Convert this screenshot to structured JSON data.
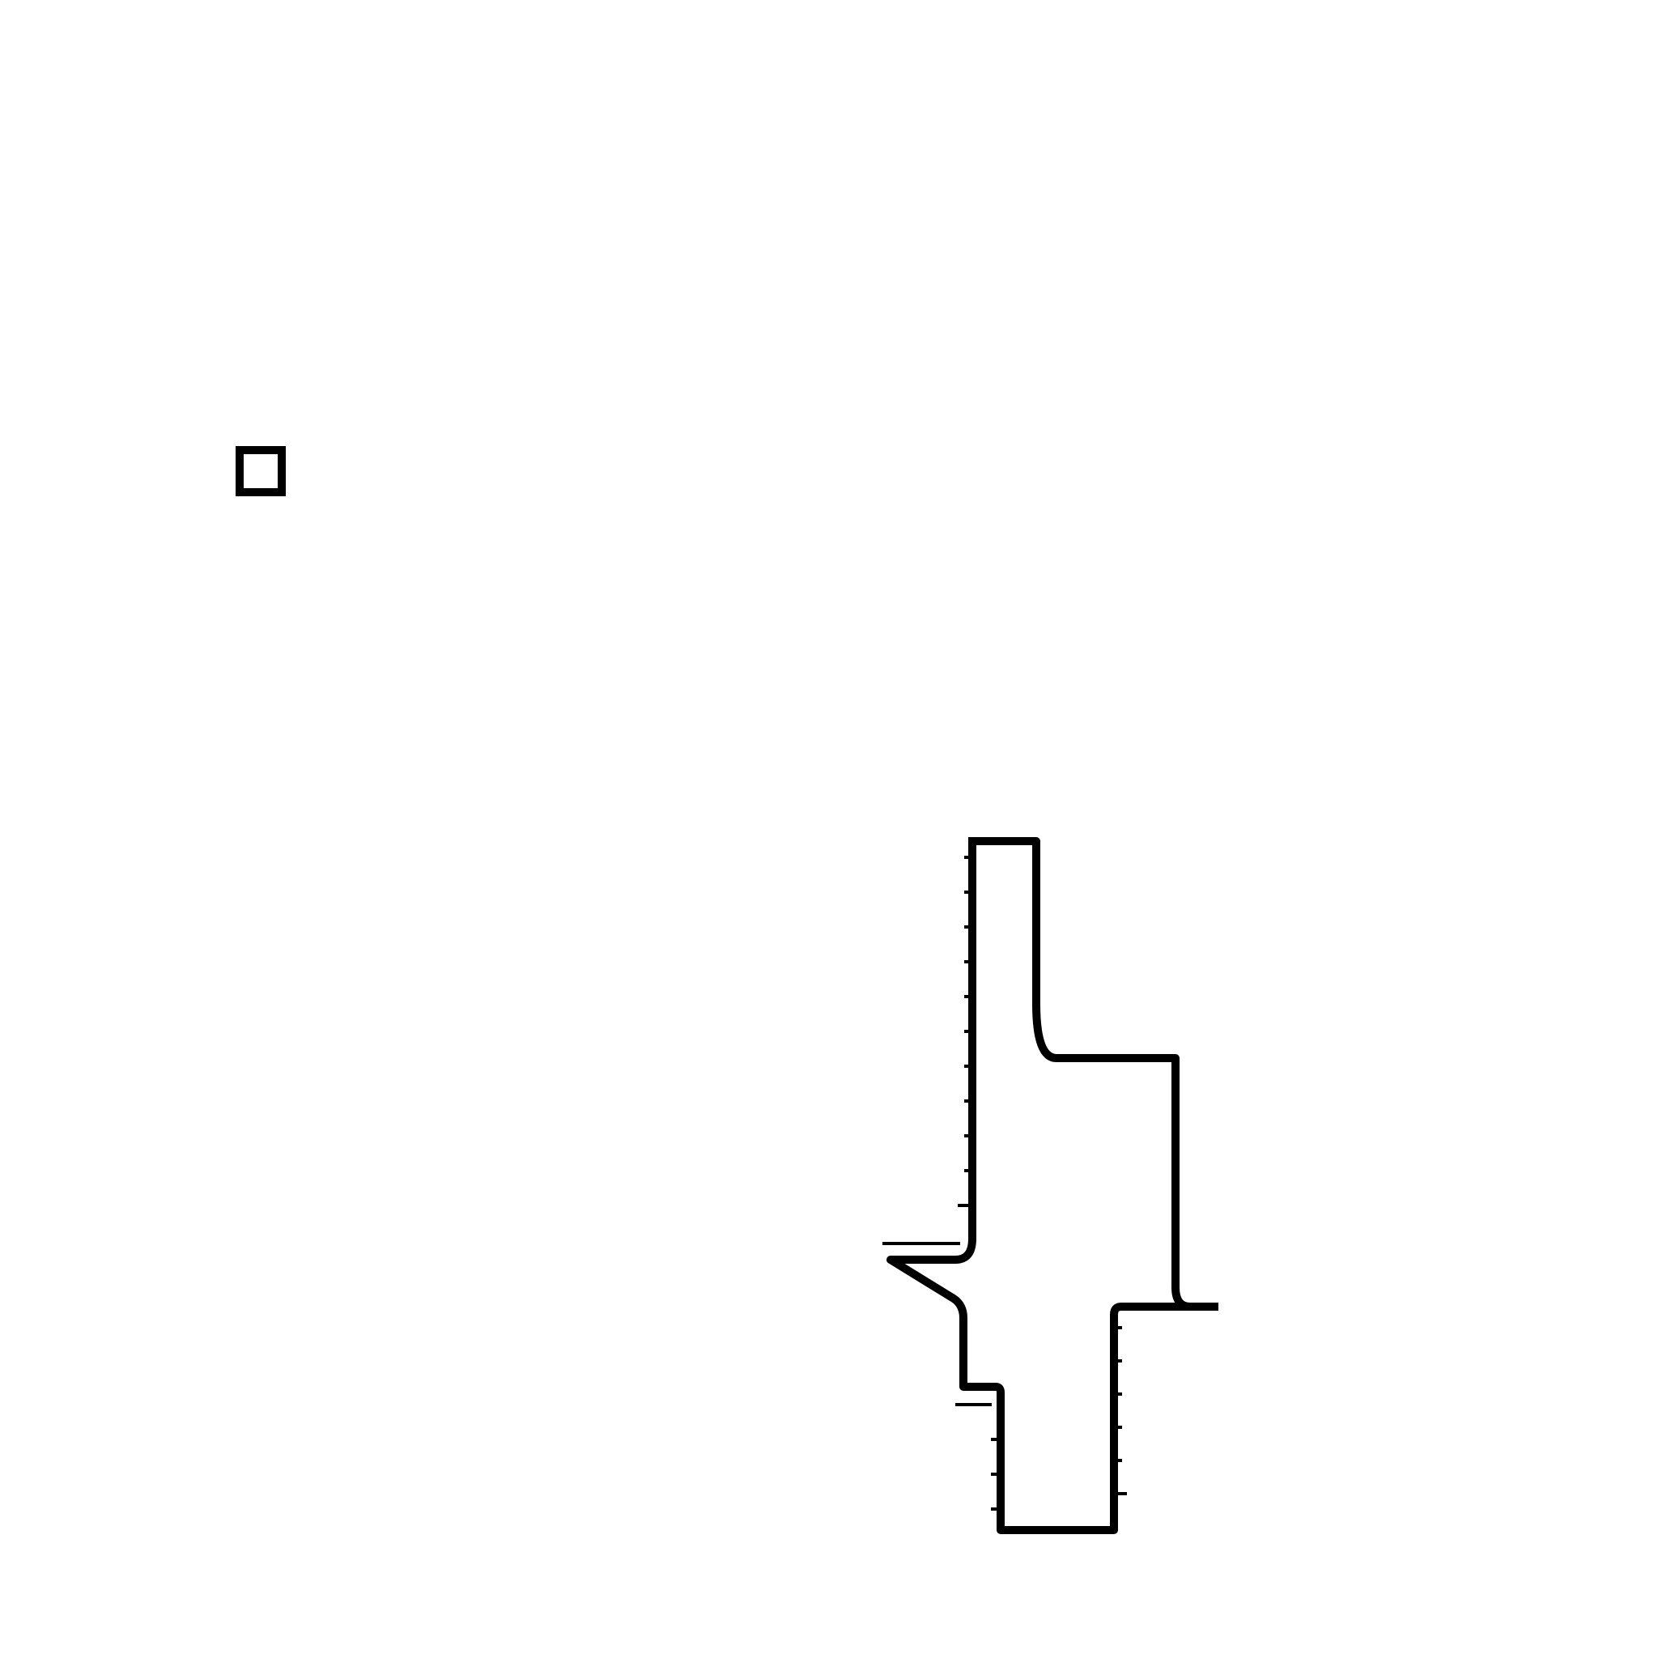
{
  "background_color": "#ffffff",
  "stroke_color": "#000000",
  "shapes": [
    {
      "name": "small-square",
      "type": "square-outline"
    },
    {
      "name": "bracket-outline",
      "type": "irregular-outline-with-tick-marks"
    }
  ]
}
